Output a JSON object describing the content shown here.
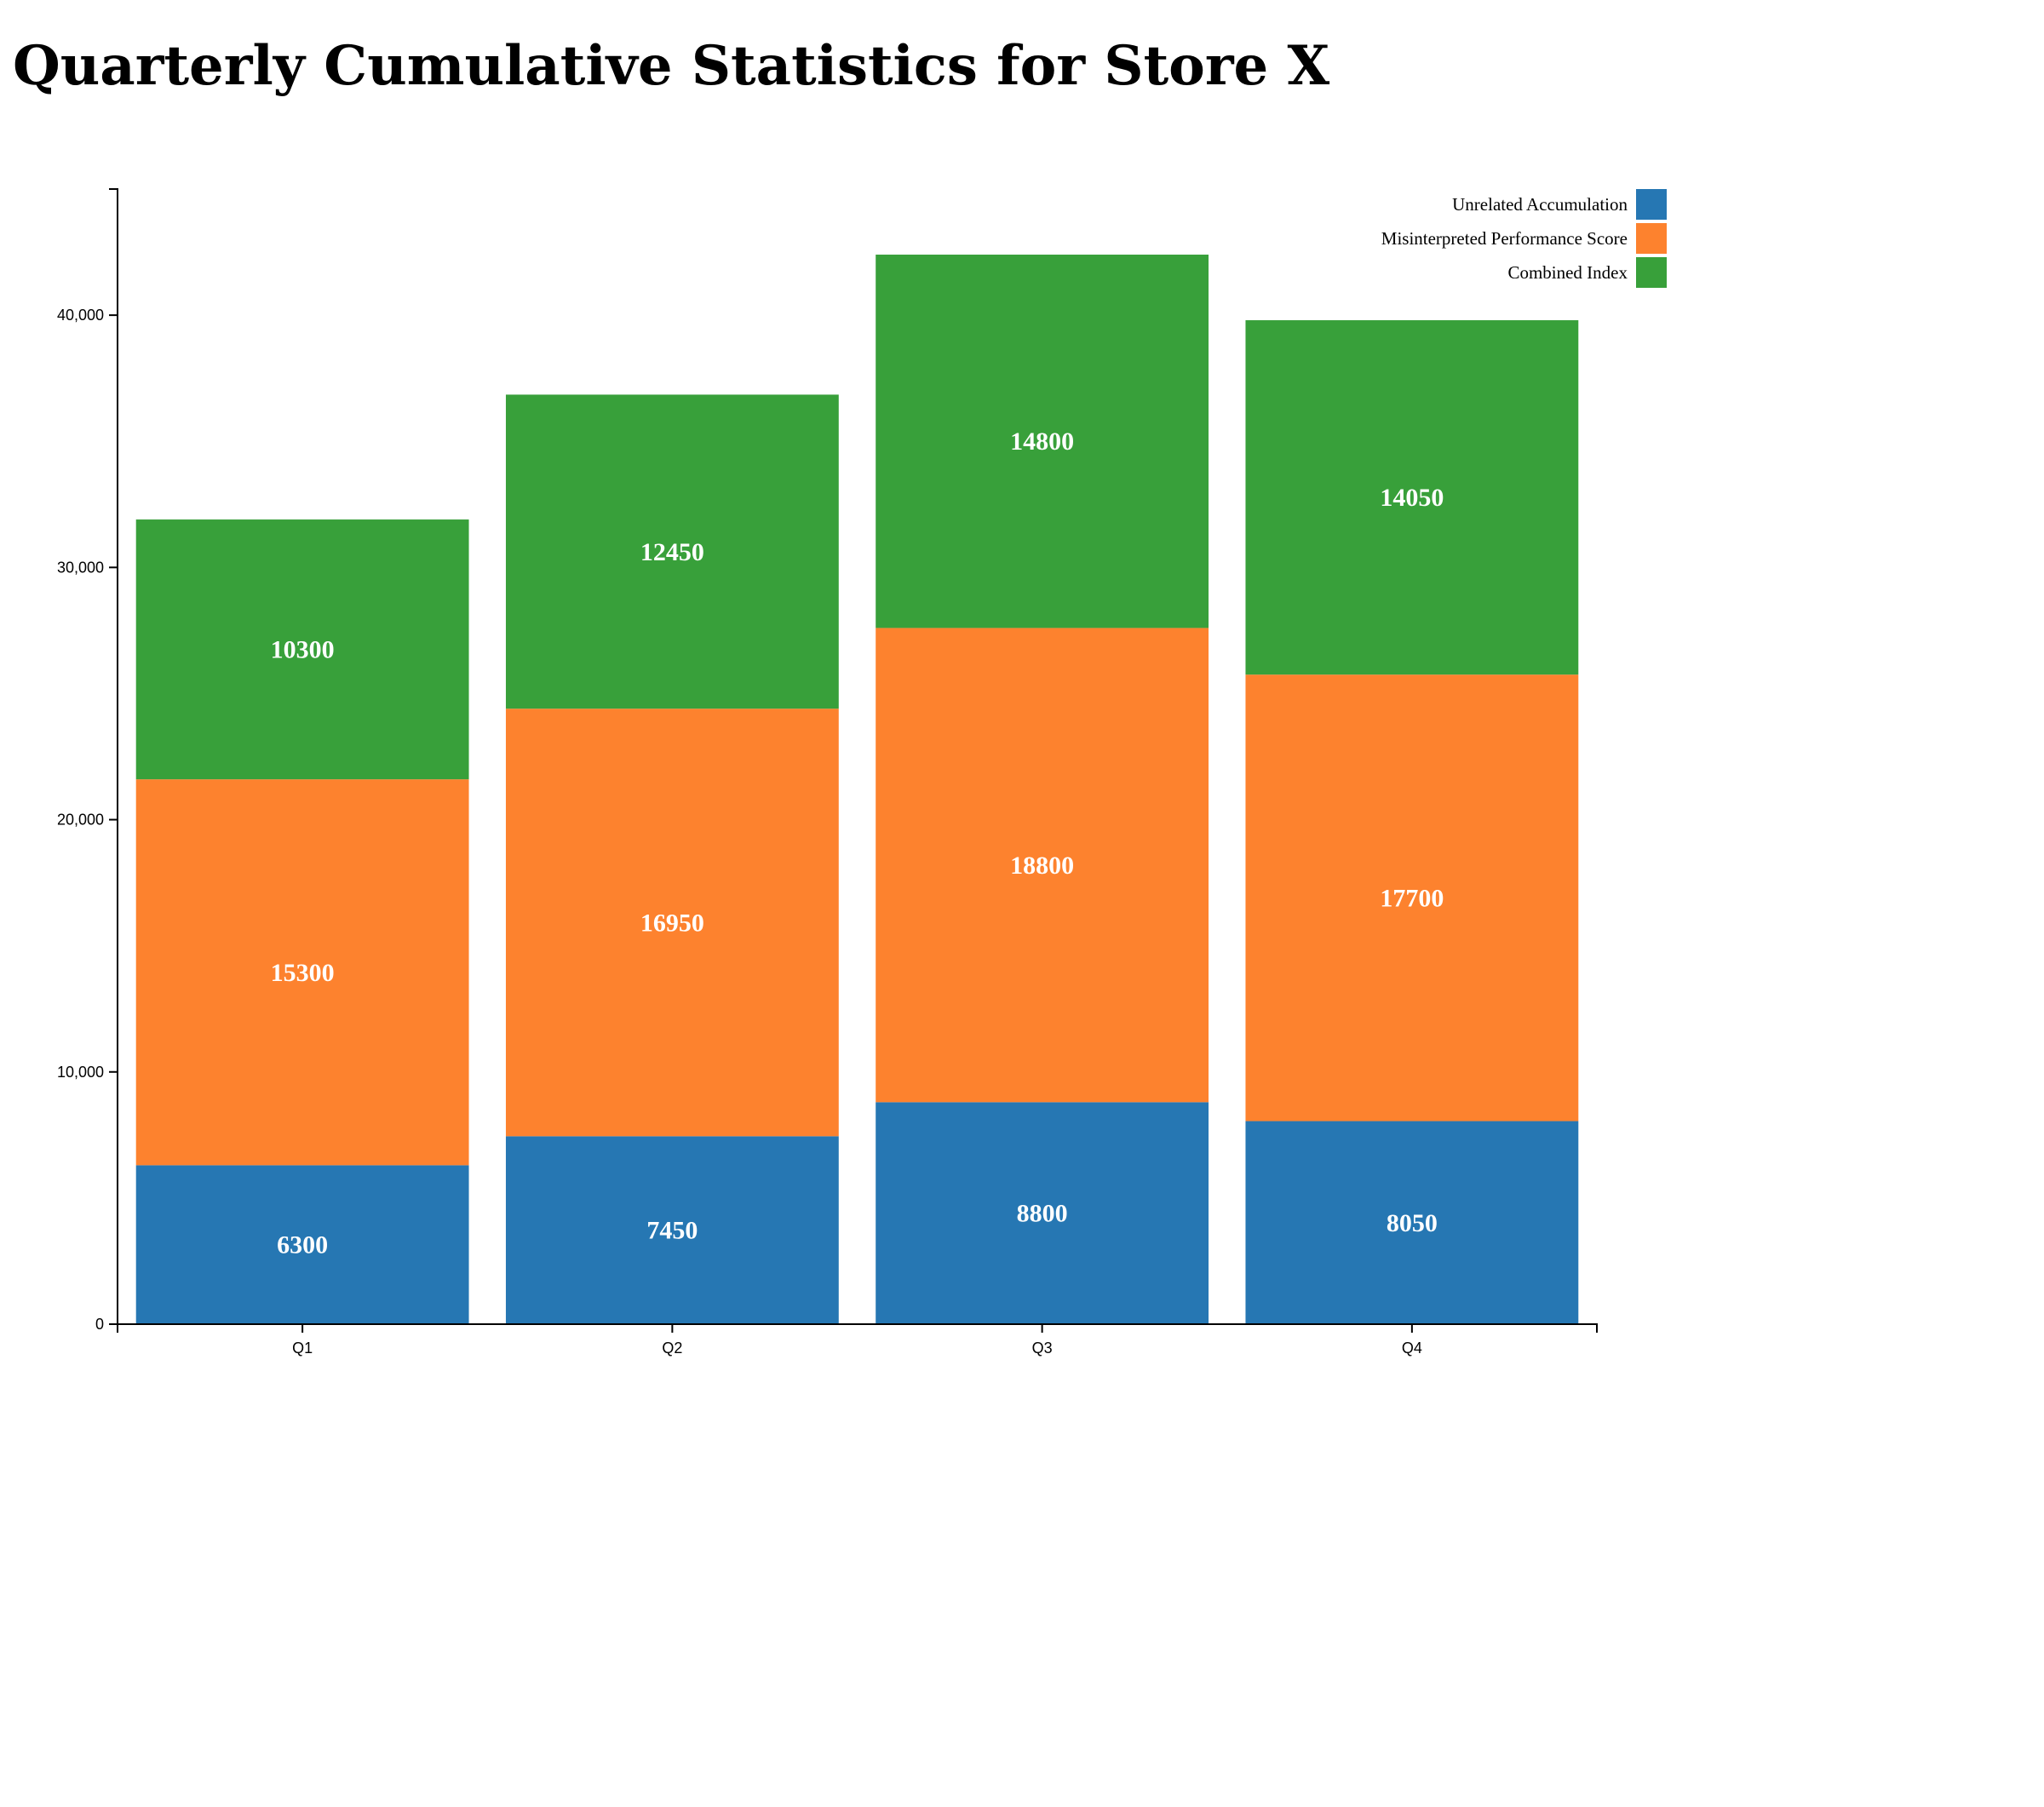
{
  "chart_data": {
    "type": "bar",
    "stacked": true,
    "title": "Quarterly Cumulative Statistics for Store X",
    "categories": [
      "Q1",
      "Q2",
      "Q3",
      "Q4"
    ],
    "series": [
      {
        "name": "Unrelated Accumulation",
        "color": "#2677b3",
        "values": [
          6300,
          7450,
          8800,
          8050
        ]
      },
      {
        "name": "Misinterpreted Performance Score",
        "color": "#fd822e",
        "values": [
          15300,
          16950,
          18800,
          17700
        ]
      },
      {
        "name": "Combined Index",
        "color": "#38a03a",
        "values": [
          10300,
          12450,
          14800,
          14050
        ]
      }
    ],
    "ylim": [
      0,
      45000
    ],
    "yticks": [
      0,
      10000,
      20000,
      30000,
      40000
    ],
    "ytick_labels": [
      "0",
      "10,000",
      "20,000",
      "30,000",
      "40,000"
    ],
    "grid": false,
    "legend_position": "top-right",
    "data_labels": true
  }
}
